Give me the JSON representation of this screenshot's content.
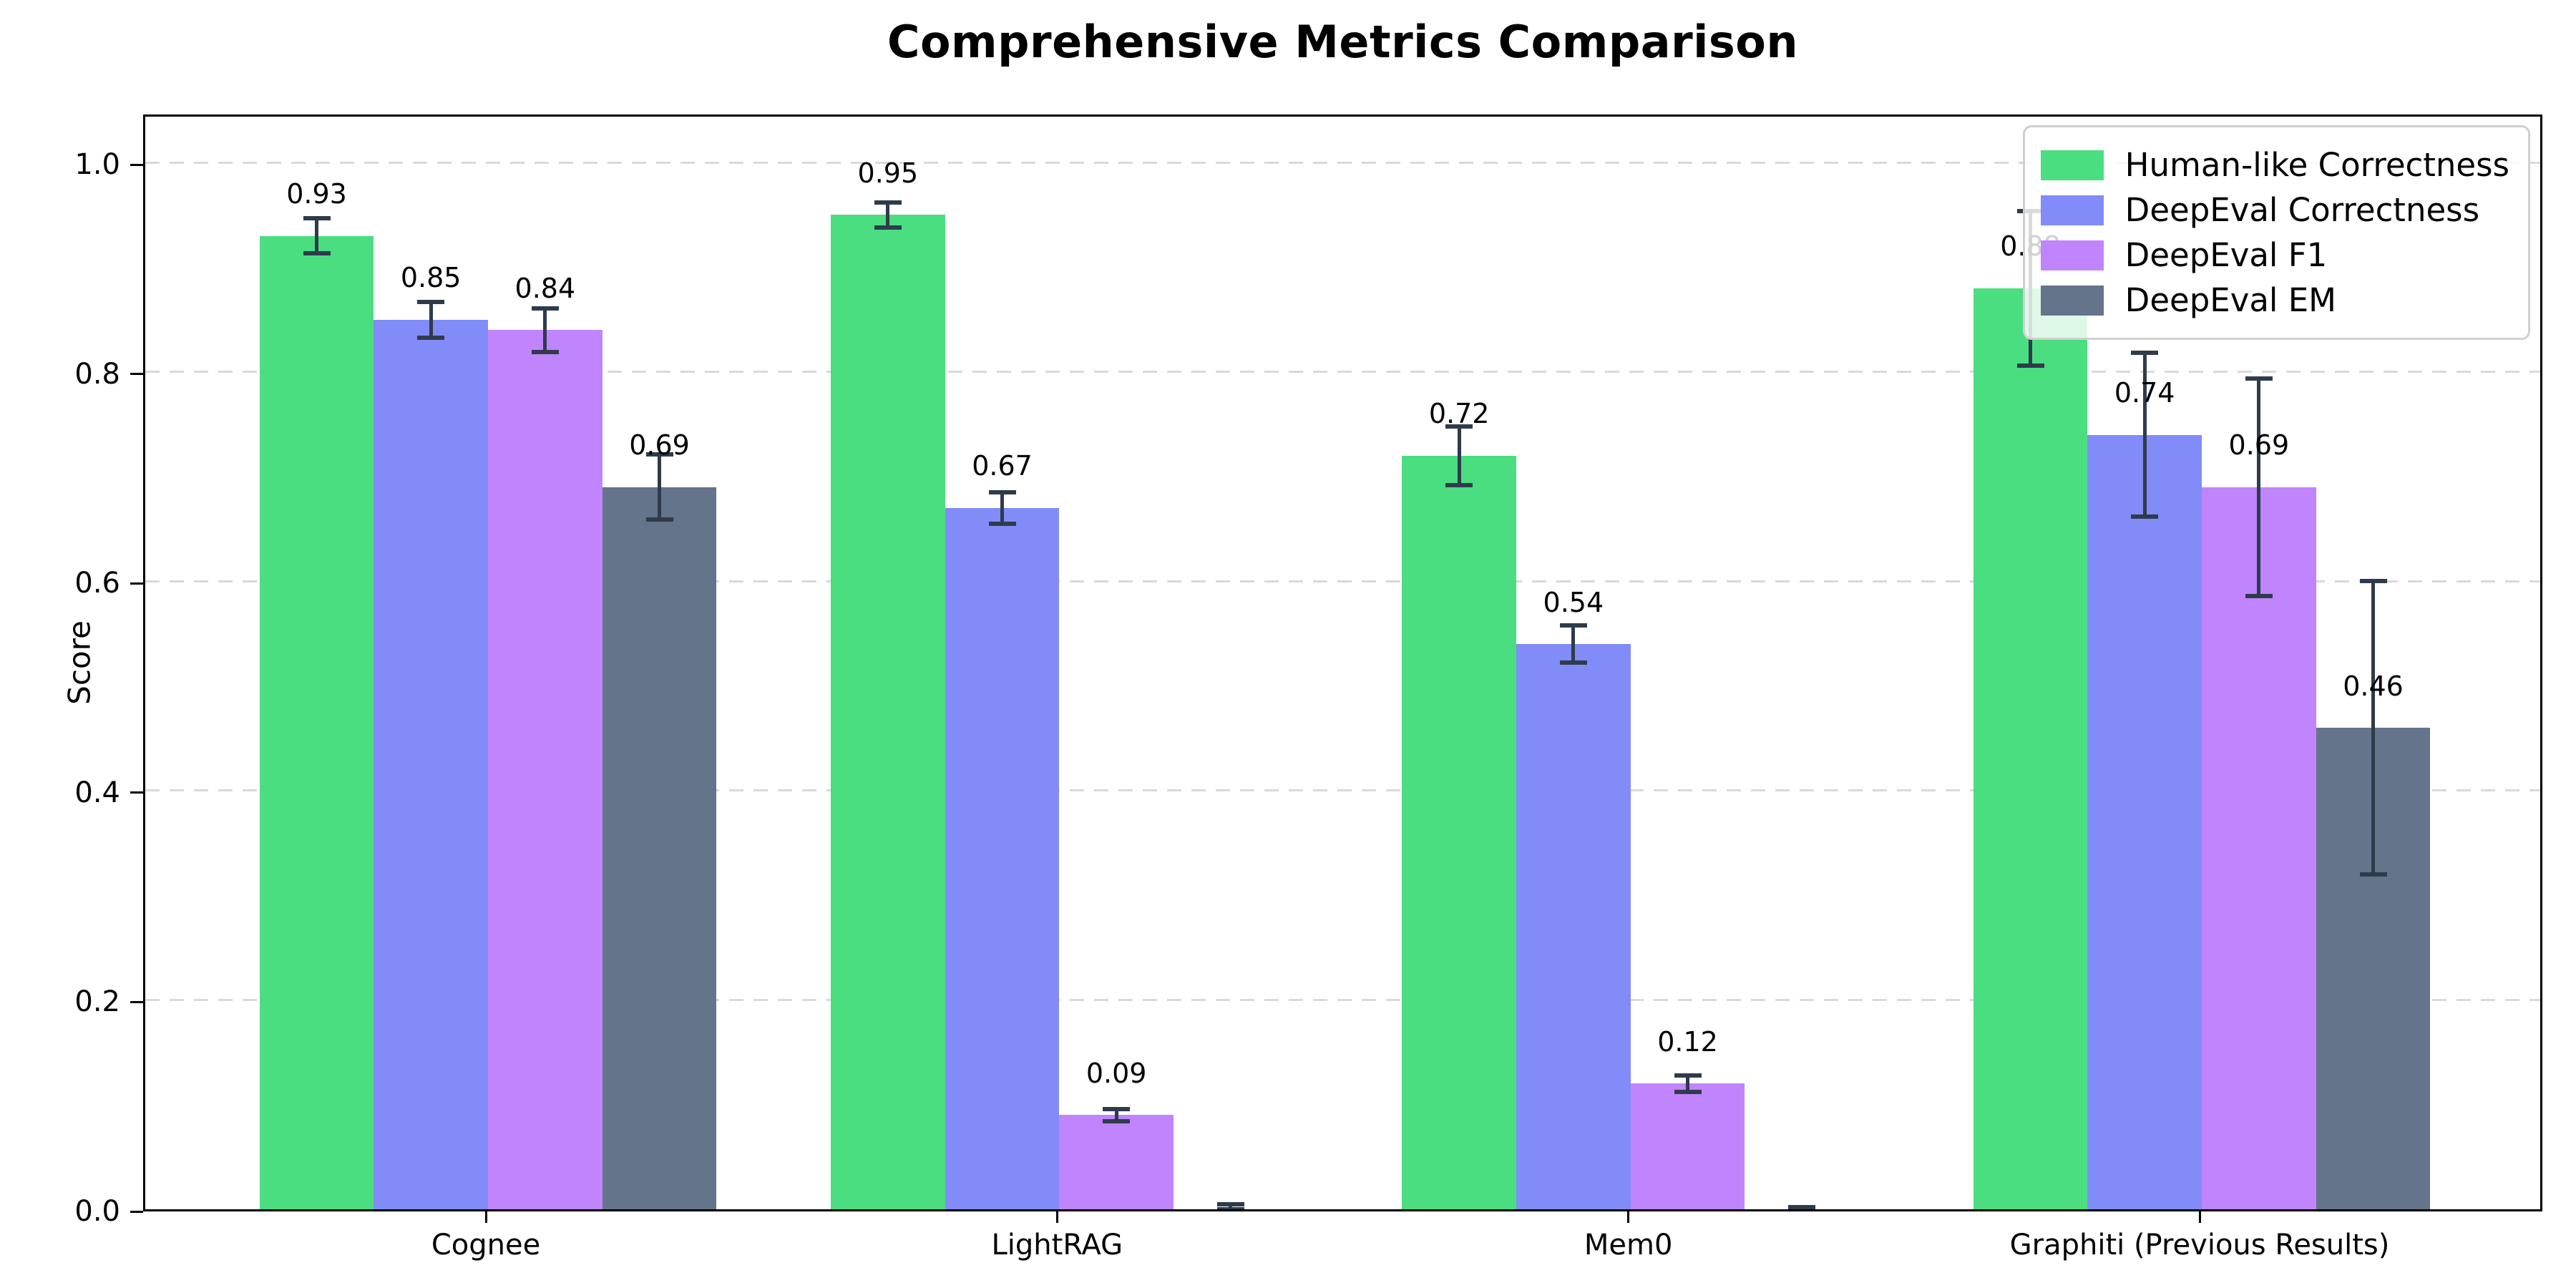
{
  "title": "Comprehensive Metrics Comparison",
  "axes": {
    "ylabel": "Score",
    "yticks": [
      "0.0",
      "0.2",
      "0.4",
      "0.6",
      "0.8",
      "1.0"
    ],
    "ytick_values": [
      0.0,
      0.2,
      0.4,
      0.6,
      0.8,
      1.0
    ]
  },
  "colors": {
    "human_like": "#4ade80",
    "deepeval_correctness": "#818cf8",
    "deepeval_f1": "#c084fc",
    "deepeval_em": "#64748b",
    "error_bar": "#2f3b4c",
    "gridline": "#d9d9d9"
  },
  "legend": {
    "position": "upper right",
    "items": [
      {
        "label": "Human-like Correctness",
        "color": "#4ade80"
      },
      {
        "label": "DeepEval Correctness",
        "color": "#818cf8"
      },
      {
        "label": "DeepEval F1",
        "color": "#c084fc"
      },
      {
        "label": "DeepEval EM",
        "color": "#64748b"
      }
    ]
  },
  "chart_data": {
    "type": "bar",
    "title": "Comprehensive Metrics Comparison",
    "xlabel": "",
    "ylabel": "Score",
    "ylim": [
      0,
      1.05
    ],
    "grid": "horizontal-dashed",
    "legend_position": "upper right",
    "categories": [
      "Cognee",
      "LightRAG",
      "Mem0",
      "Graphiti (Previous Results)"
    ],
    "series": [
      {
        "name": "Human-like Correctness",
        "color": "#4ade80",
        "values": [
          0.93,
          0.95,
          0.72,
          0.88
        ],
        "errors": [
          0.017,
          0.012,
          0.028,
          0.074
        ],
        "labels": [
          "0.93",
          "0.95",
          "0.72",
          "0.88"
        ]
      },
      {
        "name": "DeepEval Correctness",
        "color": "#818cf8",
        "values": [
          0.85,
          0.67,
          0.54,
          0.74
        ],
        "errors": [
          0.017,
          0.015,
          0.018,
          0.078
        ],
        "labels": [
          "0.85",
          "0.67",
          "0.54",
          "0.74"
        ]
      },
      {
        "name": "DeepEval F1",
        "color": "#c084fc",
        "values": [
          0.84,
          0.09,
          0.12,
          0.69
        ],
        "errors": [
          0.021,
          0.006,
          0.008,
          0.104
        ],
        "labels": [
          "0.84",
          "0.09",
          "0.12",
          "0.69"
        ]
      },
      {
        "name": "DeepEval EM",
        "color": "#64748b",
        "values": [
          0.69,
          0.0,
          0.0,
          0.46
        ],
        "errors": [
          0.031,
          0.005,
          0.002,
          0.14
        ],
        "labels": [
          "0.69",
          "",
          "",
          "0.46"
        ]
      }
    ]
  }
}
